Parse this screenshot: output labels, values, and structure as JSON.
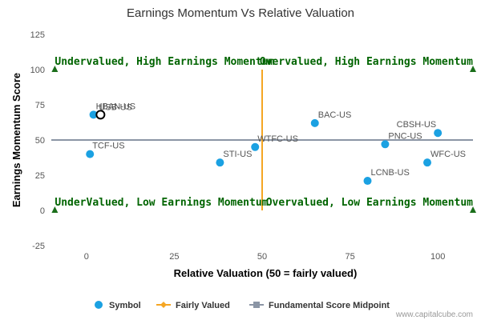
{
  "chart_data": {
    "type": "scatter",
    "title": "Earnings Momentum Vs Relative Valuation",
    "xlabel": "Relative Valuation (50 = fairly valued)",
    "ylabel": "Earnings Momentum Score",
    "xlim": [
      -10,
      110
    ],
    "ylim": [
      -25,
      125
    ],
    "xticks": [
      0,
      25,
      50,
      75,
      100
    ],
    "yticks": [
      -25,
      0,
      25,
      50,
      75,
      100,
      125
    ],
    "fairly_valued_x": 50,
    "midpoint_y": 50,
    "series": [
      {
        "name": "Symbol",
        "color": "#1ba1e2",
        "points": [
          {
            "label": "TCF-US",
            "x": 1,
            "y": 40
          },
          {
            "label": "HBAN-US",
            "x": 2,
            "y": 68
          },
          {
            "label": "USB-US",
            "x": 4,
            "y": 68
          },
          {
            "label": "STI-US",
            "x": 38,
            "y": 34
          },
          {
            "label": "WTFC-US",
            "x": 48,
            "y": 45
          },
          {
            "label": "BAC-US",
            "x": 65,
            "y": 62
          },
          {
            "label": "LCNB-US",
            "x": 80,
            "y": 21
          },
          {
            "label": "PNC-US",
            "x": 85,
            "y": 47
          },
          {
            "label": "WFC-US",
            "x": 97,
            "y": 34
          },
          {
            "label": "CBSH-US",
            "x": 100,
            "y": 55
          }
        ]
      }
    ],
    "highlighted_point": "USB-US",
    "quadrant_labels": [
      "Undervalued, High Earnings Momentum",
      "Overvalued, High Earnings Momentum",
      "UnderValued, Low Earnings Momentum",
      "Overvalued, Low Earnings Momentum"
    ],
    "legend": {
      "placement": "bottom",
      "items": [
        "Symbol",
        "Fairly Valued",
        "Fundamental Score Midpoint"
      ]
    },
    "colors": {
      "symbol": "#1ba1e2",
      "fairly_valued": "#f5a623",
      "midpoint": "#8b95a5",
      "quadrant_text": "#006400"
    }
  },
  "credit": "www.capitalcube.com"
}
